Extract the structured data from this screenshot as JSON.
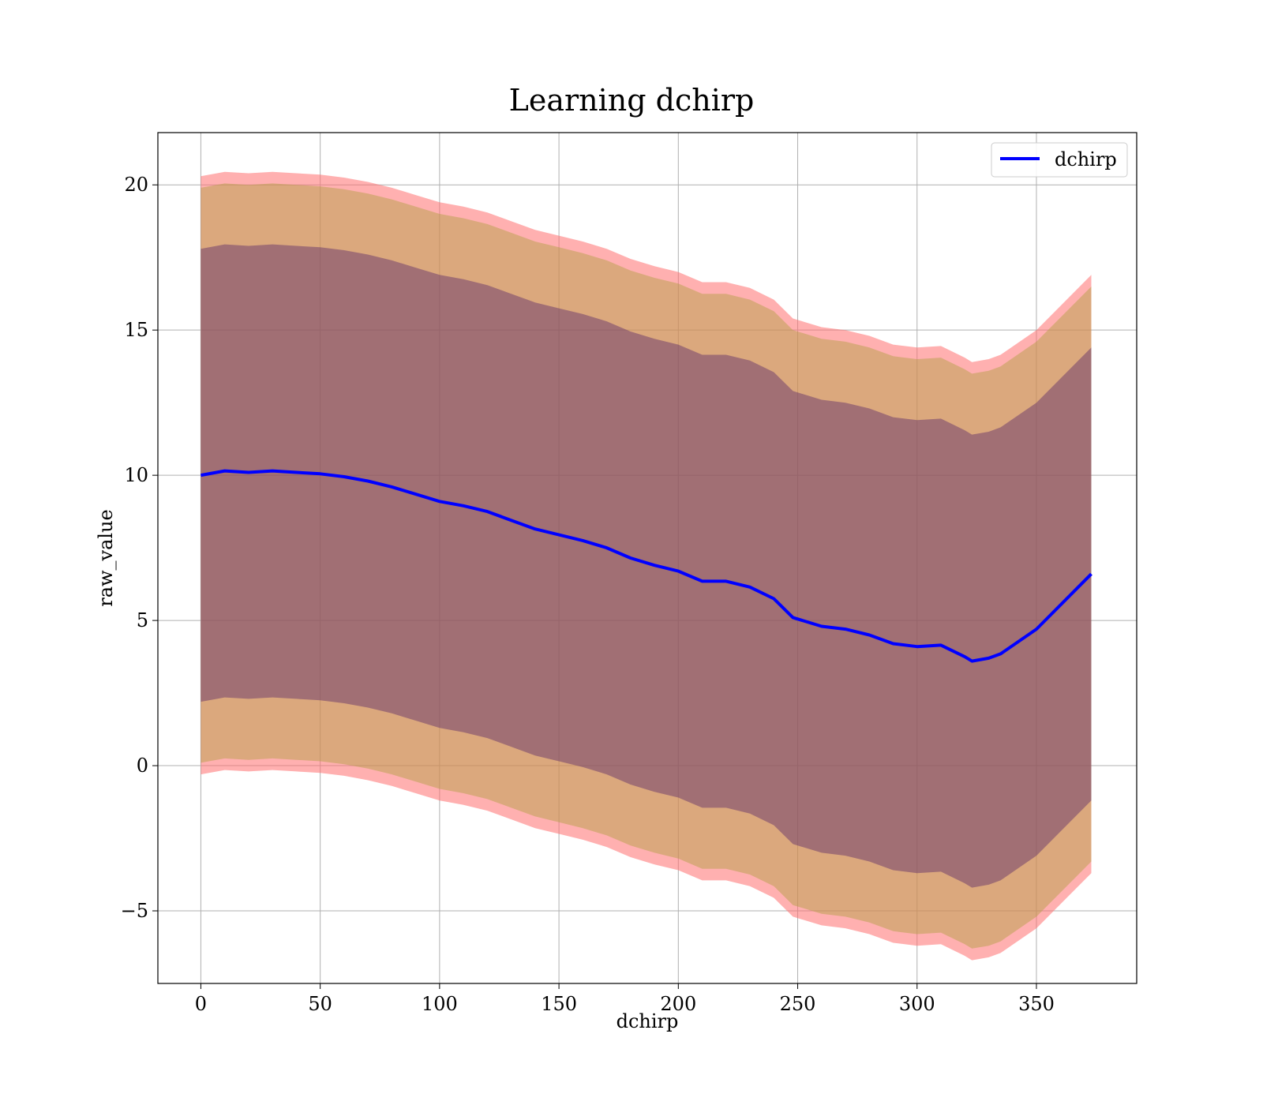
{
  "chart_data": {
    "type": "line",
    "title": "Learning dchirp",
    "xlabel": "dchirp",
    "ylabel": "raw_value",
    "xlim": [
      -18,
      392
    ],
    "ylim": [
      -7.5,
      21.8
    ],
    "xticks": [
      0,
      50,
      100,
      150,
      200,
      250,
      300,
      350
    ],
    "yticks": [
      -5,
      0,
      5,
      10,
      15,
      20
    ],
    "xtick_labels": [
      "0",
      "50",
      "100",
      "150",
      "200",
      "250",
      "300",
      "350"
    ],
    "ytick_labels": [
      "−5",
      "0",
      "5",
      "10",
      "15",
      "20"
    ],
    "grid": true,
    "legend": {
      "placement": "top-right",
      "entries": [
        "dchirp"
      ]
    },
    "series": [
      {
        "name": "dchirp",
        "color": "#0000ff",
        "x": [
          0,
          10,
          20,
          30,
          40,
          50,
          60,
          70,
          80,
          90,
          100,
          110,
          120,
          130,
          140,
          150,
          160,
          170,
          180,
          190,
          200,
          210,
          220,
          230,
          240,
          248,
          260,
          270,
          280,
          290,
          300,
          310,
          320,
          323,
          330,
          335,
          350,
          373
        ],
        "values": [
          10.0,
          10.15,
          10.1,
          10.15,
          10.1,
          10.05,
          9.95,
          9.8,
          9.6,
          9.35,
          9.1,
          8.95,
          8.75,
          8.45,
          8.15,
          7.95,
          7.75,
          7.5,
          7.15,
          6.9,
          6.7,
          6.35,
          6.35,
          6.15,
          5.75,
          5.1,
          4.8,
          4.7,
          4.5,
          4.2,
          4.1,
          4.15,
          3.75,
          3.6,
          3.7,
          3.85,
          4.7,
          6.6
        ]
      }
    ],
    "bands": [
      {
        "name": "outer band",
        "color": "#ff6f6f",
        "opacity": 0.55,
        "half_width": 10.3
      },
      {
        "name": "middle band",
        "color": "#b0a040",
        "opacity": 0.45,
        "half_width": 9.9
      },
      {
        "name": "inner band",
        "color": "#5a2a6a",
        "opacity": 0.45,
        "half_width": 7.8
      }
    ]
  }
}
